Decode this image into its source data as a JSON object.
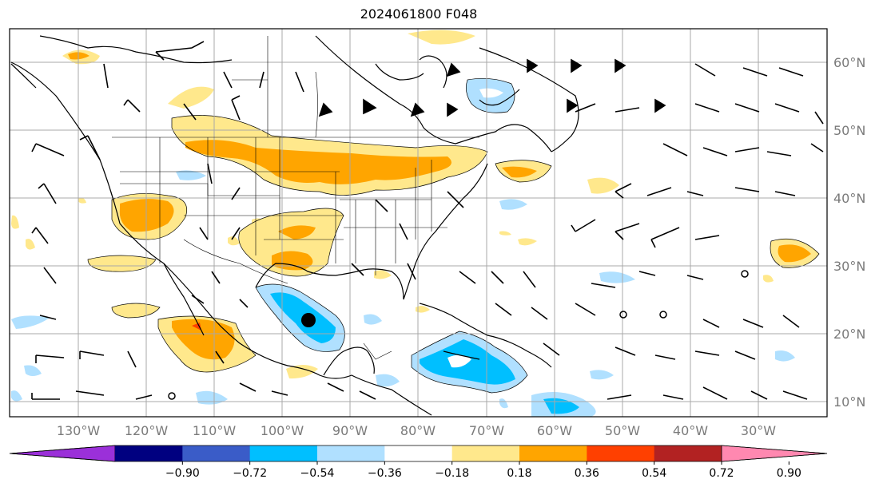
{
  "title": "2024061800 F048",
  "longitude_labels": [
    "130°W",
    "120°W",
    "110°W",
    "100°W",
    "90°W",
    "80°W",
    "70°W",
    "60°W",
    "50°W",
    "40°W",
    "30°W"
  ],
  "latitude_labels": [
    "60°N",
    "50°N",
    "40°N",
    "30°N",
    "20°N",
    "10°N"
  ],
  "colorbar": {
    "ticks": [
      "−0.90",
      "−0.72",
      "−0.54",
      "−0.36",
      "−0.18",
      "0.18",
      "0.36",
      "0.54",
      "0.72",
      "0.90"
    ],
    "colors": [
      "#9b30d9",
      "#000080",
      "#3a5cc8",
      "#00bfff",
      "#b0e0ff",
      "#ffffff",
      "#ffe88c",
      "#ffa500",
      "#ff4000",
      "#b22222",
      "#ff88b0"
    ]
  },
  "marker": {
    "label": "",
    "color": "#000000",
    "lon": -96,
    "lat": 22
  }
}
